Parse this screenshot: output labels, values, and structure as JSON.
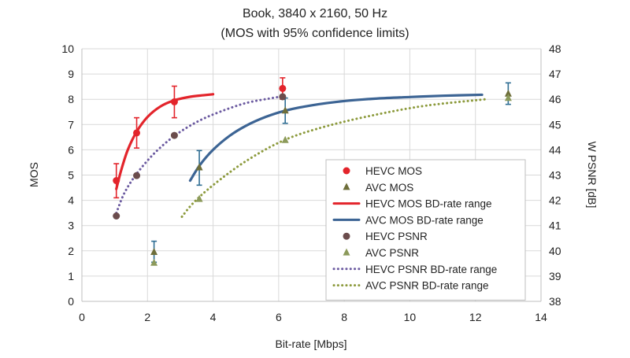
{
  "chart_data": {
    "type": "scatter",
    "title": "Book, 3840 x 2160, 50 Hz",
    "subtitle": "(MOS with 95% confidence limits)",
    "xlabel": "Bit-rate [Mbps]",
    "ylabel": "MOS",
    "y2label": "W PSNR [dB]",
    "xlim": [
      0,
      14
    ],
    "ylim": [
      0,
      10
    ],
    "y2lim": [
      38,
      48
    ],
    "xticks": [
      "0",
      "2",
      "4",
      "6",
      "8",
      "10",
      "12",
      "14"
    ],
    "yticks": [
      "0",
      "1",
      "2",
      "3",
      "4",
      "5",
      "6",
      "7",
      "8",
      "9",
      "10"
    ],
    "y2ticks": [
      "38",
      "39",
      "40",
      "41",
      "42",
      "43",
      "44",
      "45",
      "46",
      "47",
      "48"
    ],
    "grid": "vertical and horizontal",
    "legend_position": "bottom-right",
    "series": [
      {
        "name": "HEVC MOS",
        "kind": "marker",
        "marker": "circle",
        "axis": "left",
        "color": "#e3242b",
        "x": [
          1.05,
          1.67,
          2.82,
          6.12
        ],
        "y": [
          4.78,
          6.67,
          7.9,
          8.43
        ],
        "err_low": [
          4.1,
          6.07,
          7.27,
          8.0
        ],
        "err_high": [
          5.45,
          7.27,
          8.52,
          8.85
        ]
      },
      {
        "name": "AVC MOS",
        "kind": "marker",
        "marker": "triangle",
        "axis": "left",
        "color": "#6e6e3a",
        "x": [
          2.2,
          3.58,
          6.2,
          13.0
        ],
        "y": [
          1.95,
          5.3,
          7.55,
          8.22
        ],
        "err_low": [
          1.55,
          4.6,
          7.05,
          7.8
        ],
        "err_high": [
          2.38,
          5.97,
          8.05,
          8.65
        ]
      },
      {
        "name": "HEVC MOS BD-rate range",
        "kind": "line",
        "style": "solid",
        "axis": "left",
        "color": "#e3242b",
        "x": [
          1.05,
          1.2,
          1.4,
          1.67,
          2.0,
          2.4,
          2.82,
          3.3,
          3.7,
          4.0
        ],
        "y": [
          4.45,
          5.2,
          6.0,
          6.72,
          7.3,
          7.72,
          7.96,
          8.1,
          8.16,
          8.2
        ]
      },
      {
        "name": "AVC MOS BD-rate range",
        "kind": "line",
        "style": "solid",
        "axis": "left",
        "color": "#3c6494",
        "x": [
          3.3,
          3.6,
          4.0,
          4.5,
          5.0,
          5.6,
          6.2,
          7.0,
          8.0,
          9.0,
          10.0,
          11.0,
          12.2
        ],
        "y": [
          4.78,
          5.4,
          6.0,
          6.55,
          6.95,
          7.3,
          7.55,
          7.76,
          7.93,
          8.03,
          8.09,
          8.14,
          8.18
        ]
      },
      {
        "name": "HEVC PSNR",
        "kind": "marker",
        "marker": "circle",
        "axis": "right",
        "color": "#6b4c4c",
        "x": [
          1.05,
          1.67,
          2.82,
          6.12
        ],
        "y": [
          41.38,
          42.98,
          44.57,
          46.1
        ]
      },
      {
        "name": "AVC PSNR",
        "kind": "marker",
        "marker": "triangle",
        "axis": "right",
        "color": "#8c9a5b",
        "x": [
          2.2,
          3.58,
          6.2,
          13.0
        ],
        "y": [
          39.52,
          42.05,
          44.38,
          46.05
        ]
      },
      {
        "name": "HEVC PSNR BD-rate range",
        "kind": "line",
        "style": "dotted",
        "axis": "right",
        "color": "#6b5aa0",
        "x": [
          1.05,
          1.3,
          1.67,
          2.2,
          2.82,
          3.5,
          4.2,
          5.0,
          5.8,
          6.15
        ],
        "y": [
          41.5,
          42.3,
          43.05,
          43.85,
          44.55,
          45.1,
          45.5,
          45.85,
          46.05,
          46.12
        ]
      },
      {
        "name": "AVC PSNR BD-rate range",
        "kind": "line",
        "style": "dotted",
        "axis": "right",
        "color": "#8c9a3c",
        "x": [
          3.05,
          3.4,
          4.0,
          5.0,
          6.2,
          7.5,
          9.0,
          10.5,
          12.3
        ],
        "y": [
          41.35,
          41.9,
          42.6,
          43.55,
          44.4,
          44.95,
          45.4,
          45.75,
          46.0
        ]
      }
    ]
  }
}
